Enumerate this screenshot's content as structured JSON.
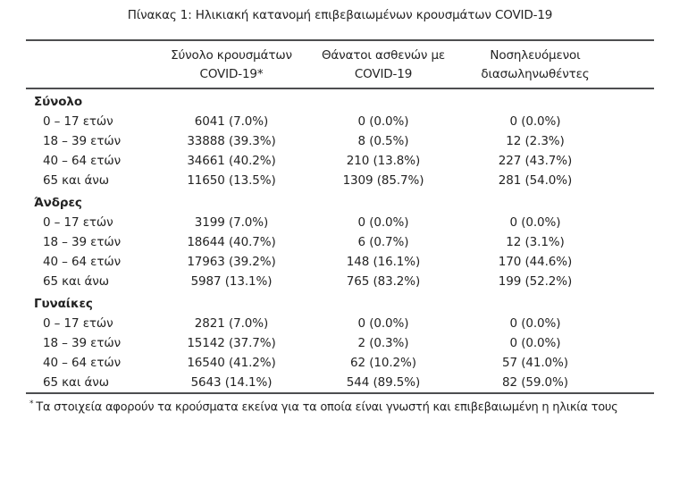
{
  "title": "Πίνακας 1: Ηλικιακή κατανομή επιβεβαιωμένων κρουσμάτων COVID-19",
  "table": {
    "columns": [
      {
        "line1": "Σύνολο κρουσμάτων",
        "line2": "COVID-19*"
      },
      {
        "line1": "Θάνατοι ασθενών με",
        "line2": "COVID-19"
      },
      {
        "line1": "Νοσηλευόμενοι",
        "line2": "διασωληνωθέντες"
      }
    ],
    "sections": [
      {
        "label": "Σύνολο",
        "rows": [
          {
            "age": "0 – 17 ετών",
            "cases": "6041 (7.0%)",
            "deaths": "0 (0.0%)",
            "intubated": "0 (0.0%)"
          },
          {
            "age": "18 – 39 ετών",
            "cases": "33888 (39.3%)",
            "deaths": "8 (0.5%)",
            "intubated": "12 (2.3%)"
          },
          {
            "age": "40 – 64 ετών",
            "cases": "34661 (40.2%)",
            "deaths": "210 (13.8%)",
            "intubated": "227 (43.7%)"
          },
          {
            "age": "65 και άνω",
            "cases": "11650 (13.5%)",
            "deaths": "1309 (85.7%)",
            "intubated": "281 (54.0%)"
          }
        ]
      },
      {
        "label": "Άνδρες",
        "rows": [
          {
            "age": "0 – 17 ετών",
            "cases": "3199 (7.0%)",
            "deaths": "0 (0.0%)",
            "intubated": "0 (0.0%)"
          },
          {
            "age": "18 – 39 ετών",
            "cases": "18644 (40.7%)",
            "deaths": "6 (0.7%)",
            "intubated": "12 (3.1%)"
          },
          {
            "age": "40 – 64 ετών",
            "cases": "17963 (39.2%)",
            "deaths": "148 (16.1%)",
            "intubated": "170 (44.6%)"
          },
          {
            "age": "65 και άνω",
            "cases": "5987 (13.1%)",
            "deaths": "765 (83.2%)",
            "intubated": "199 (52.2%)"
          }
        ]
      },
      {
        "label": "Γυναίκες",
        "rows": [
          {
            "age": "0 – 17 ετών",
            "cases": "2821 (7.0%)",
            "deaths": "0 (0.0%)",
            "intubated": "0 (0.0%)"
          },
          {
            "age": "18 – 39 ετών",
            "cases": "15142 (37.7%)",
            "deaths": "2 (0.3%)",
            "intubated": "0 (0.0%)"
          },
          {
            "age": "40 – 64 ετών",
            "cases": "16540 (41.2%)",
            "deaths": "62 (10.2%)",
            "intubated": "57 (41.0%)"
          },
          {
            "age": "65 και άνω",
            "cases": "5643 (14.1%)",
            "deaths": "544 (89.5%)",
            "intubated": "82 (59.0%)"
          }
        ]
      }
    ]
  },
  "footnote": {
    "marker": "*",
    "text": "Τα στοιχεία αφορούν τα κρούσματα εκείνα για τα οποία είναι γνωστή και επιβεβαιωμένη η ηλικία τους"
  },
  "colors": {
    "text": "#232323",
    "rule": "#4d4e50",
    "background": "#ffffff"
  }
}
